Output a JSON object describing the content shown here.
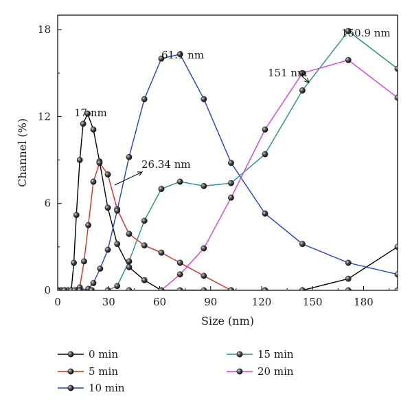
{
  "chart_data": {
    "type": "line",
    "xlabel": "Size (nm)",
    "ylabel": "Channel (%)",
    "xlim": [
      0,
      200
    ],
    "ylim": [
      0,
      19
    ],
    "xticks": [
      0,
      30,
      60,
      90,
      120,
      150,
      180
    ],
    "yticks": [
      0,
      6,
      12,
      18
    ],
    "grid": false,
    "legend_position": "bottom",
    "series": [
      {
        "name": "0 min",
        "color": "#000000",
        "x": [
          0,
          2,
          4,
          6,
          8,
          9.5,
          11,
          13,
          15,
          17.6,
          21,
          24.6,
          29.5,
          35,
          42,
          51,
          61,
          72,
          86,
          102,
          122,
          144,
          171,
          200
        ],
        "y": [
          0,
          0,
          0,
          0,
          0,
          1.9,
          5.2,
          9,
          11.5,
          12.2,
          11.1,
          8.9,
          5.7,
          3.2,
          1.6,
          0.7,
          0,
          0,
          0,
          0,
          0,
          0,
          0.8,
          3
        ]
      },
      {
        "name": "5 min",
        "color": "#e3261c",
        "x": [
          0,
          2,
          4,
          6,
          8,
          11,
          13,
          15.5,
          18,
          21,
          24.6,
          29.5,
          35,
          42,
          51,
          61,
          72,
          86,
          102,
          122,
          144,
          171,
          200
        ],
        "y": [
          0,
          0,
          0,
          0,
          0,
          0,
          0.2,
          2,
          4.5,
          7.5,
          8.8,
          8,
          5.6,
          3.9,
          3.1,
          2.6,
          1.9,
          1,
          0,
          0,
          0,
          0,
          0
        ]
      },
      {
        "name": "10 min",
        "color": "#1f3fd0",
        "x": [
          0,
          4,
          8,
          13,
          18,
          21,
          25,
          29.5,
          35,
          42,
          51,
          61,
          72,
          86,
          102,
          122,
          144,
          171,
          200
        ],
        "y": [
          0,
          0,
          0,
          0,
          0.1,
          0.5,
          1.5,
          2.8,
          5.5,
          9.2,
          13.2,
          16,
          16.3,
          13.2,
          8.8,
          5.3,
          3.2,
          1.9,
          1.1
        ]
      },
      {
        "name": "15 min",
        "color": "#1f8f8a",
        "x": [
          0,
          10,
          20,
          29.5,
          35,
          42,
          51,
          61,
          72,
          86,
          102,
          122,
          144,
          171,
          200
        ],
        "y": [
          0,
          0,
          0,
          0,
          0.3,
          2,
          4.8,
          7,
          7.5,
          7.2,
          7.4,
          9.4,
          13.8,
          17.9,
          15.3
        ]
      },
      {
        "name": "20 min",
        "color": "#e835e3",
        "x": [
          0,
          20,
          42,
          61,
          72,
          86,
          102,
          122,
          144,
          171,
          200
        ],
        "y": [
          0,
          0,
          0,
          0,
          1.1,
          2.9,
          6.4,
          11.1,
          15,
          15.9,
          13.3
        ]
      }
    ],
    "annotations": [
      "17 nm",
      "26.34 nm",
      "61.1 nm",
      "151 nm",
      "150.9 nm"
    ]
  }
}
